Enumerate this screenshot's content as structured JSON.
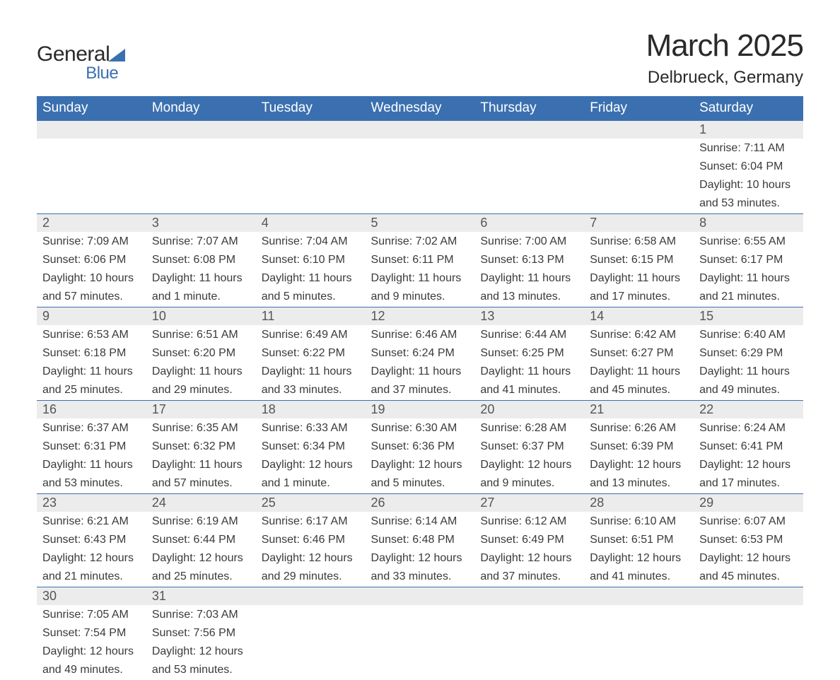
{
  "logo": {
    "word1": "General",
    "word2": "Blue"
  },
  "header": {
    "title": "March 2025",
    "subtitle": "Delbrueck, Germany"
  },
  "style": {
    "header_bg": "#3a70b0",
    "header_fg": "#ffffff",
    "daynum_bg": "#ececec",
    "row_divider": "#3a70b0",
    "body_bg": "#ffffff",
    "text_color": "#3a3a3a",
    "title_fontsize": 44,
    "subtitle_fontsize": 24,
    "header_fontsize": 19,
    "daynum_fontsize": 18,
    "body_fontsize": 16
  },
  "columns": [
    "Sunday",
    "Monday",
    "Tuesday",
    "Wednesday",
    "Thursday",
    "Friday",
    "Saturday"
  ],
  "weeks": [
    [
      null,
      null,
      null,
      null,
      null,
      null,
      {
        "n": "1",
        "sr": "Sunrise: 7:11 AM",
        "ss": "Sunset: 6:04 PM",
        "d1": "Daylight: 10 hours",
        "d2": "and 53 minutes."
      }
    ],
    [
      {
        "n": "2",
        "sr": "Sunrise: 7:09 AM",
        "ss": "Sunset: 6:06 PM",
        "d1": "Daylight: 10 hours",
        "d2": "and 57 minutes."
      },
      {
        "n": "3",
        "sr": "Sunrise: 7:07 AM",
        "ss": "Sunset: 6:08 PM",
        "d1": "Daylight: 11 hours",
        "d2": "and 1 minute."
      },
      {
        "n": "4",
        "sr": "Sunrise: 7:04 AM",
        "ss": "Sunset: 6:10 PM",
        "d1": "Daylight: 11 hours",
        "d2": "and 5 minutes."
      },
      {
        "n": "5",
        "sr": "Sunrise: 7:02 AM",
        "ss": "Sunset: 6:11 PM",
        "d1": "Daylight: 11 hours",
        "d2": "and 9 minutes."
      },
      {
        "n": "6",
        "sr": "Sunrise: 7:00 AM",
        "ss": "Sunset: 6:13 PM",
        "d1": "Daylight: 11 hours",
        "d2": "and 13 minutes."
      },
      {
        "n": "7",
        "sr": "Sunrise: 6:58 AM",
        "ss": "Sunset: 6:15 PM",
        "d1": "Daylight: 11 hours",
        "d2": "and 17 minutes."
      },
      {
        "n": "8",
        "sr": "Sunrise: 6:55 AM",
        "ss": "Sunset: 6:17 PM",
        "d1": "Daylight: 11 hours",
        "d2": "and 21 minutes."
      }
    ],
    [
      {
        "n": "9",
        "sr": "Sunrise: 6:53 AM",
        "ss": "Sunset: 6:18 PM",
        "d1": "Daylight: 11 hours",
        "d2": "and 25 minutes."
      },
      {
        "n": "10",
        "sr": "Sunrise: 6:51 AM",
        "ss": "Sunset: 6:20 PM",
        "d1": "Daylight: 11 hours",
        "d2": "and 29 minutes."
      },
      {
        "n": "11",
        "sr": "Sunrise: 6:49 AM",
        "ss": "Sunset: 6:22 PM",
        "d1": "Daylight: 11 hours",
        "d2": "and 33 minutes."
      },
      {
        "n": "12",
        "sr": "Sunrise: 6:46 AM",
        "ss": "Sunset: 6:24 PM",
        "d1": "Daylight: 11 hours",
        "d2": "and 37 minutes."
      },
      {
        "n": "13",
        "sr": "Sunrise: 6:44 AM",
        "ss": "Sunset: 6:25 PM",
        "d1": "Daylight: 11 hours",
        "d2": "and 41 minutes."
      },
      {
        "n": "14",
        "sr": "Sunrise: 6:42 AM",
        "ss": "Sunset: 6:27 PM",
        "d1": "Daylight: 11 hours",
        "d2": "and 45 minutes."
      },
      {
        "n": "15",
        "sr": "Sunrise: 6:40 AM",
        "ss": "Sunset: 6:29 PM",
        "d1": "Daylight: 11 hours",
        "d2": "and 49 minutes."
      }
    ],
    [
      {
        "n": "16",
        "sr": "Sunrise: 6:37 AM",
        "ss": "Sunset: 6:31 PM",
        "d1": "Daylight: 11 hours",
        "d2": "and 53 minutes."
      },
      {
        "n": "17",
        "sr": "Sunrise: 6:35 AM",
        "ss": "Sunset: 6:32 PM",
        "d1": "Daylight: 11 hours",
        "d2": "and 57 minutes."
      },
      {
        "n": "18",
        "sr": "Sunrise: 6:33 AM",
        "ss": "Sunset: 6:34 PM",
        "d1": "Daylight: 12 hours",
        "d2": "and 1 minute."
      },
      {
        "n": "19",
        "sr": "Sunrise: 6:30 AM",
        "ss": "Sunset: 6:36 PM",
        "d1": "Daylight: 12 hours",
        "d2": "and 5 minutes."
      },
      {
        "n": "20",
        "sr": "Sunrise: 6:28 AM",
        "ss": "Sunset: 6:37 PM",
        "d1": "Daylight: 12 hours",
        "d2": "and 9 minutes."
      },
      {
        "n": "21",
        "sr": "Sunrise: 6:26 AM",
        "ss": "Sunset: 6:39 PM",
        "d1": "Daylight: 12 hours",
        "d2": "and 13 minutes."
      },
      {
        "n": "22",
        "sr": "Sunrise: 6:24 AM",
        "ss": "Sunset: 6:41 PM",
        "d1": "Daylight: 12 hours",
        "d2": "and 17 minutes."
      }
    ],
    [
      {
        "n": "23",
        "sr": "Sunrise: 6:21 AM",
        "ss": "Sunset: 6:43 PM",
        "d1": "Daylight: 12 hours",
        "d2": "and 21 minutes."
      },
      {
        "n": "24",
        "sr": "Sunrise: 6:19 AM",
        "ss": "Sunset: 6:44 PM",
        "d1": "Daylight: 12 hours",
        "d2": "and 25 minutes."
      },
      {
        "n": "25",
        "sr": "Sunrise: 6:17 AM",
        "ss": "Sunset: 6:46 PM",
        "d1": "Daylight: 12 hours",
        "d2": "and 29 minutes."
      },
      {
        "n": "26",
        "sr": "Sunrise: 6:14 AM",
        "ss": "Sunset: 6:48 PM",
        "d1": "Daylight: 12 hours",
        "d2": "and 33 minutes."
      },
      {
        "n": "27",
        "sr": "Sunrise: 6:12 AM",
        "ss": "Sunset: 6:49 PM",
        "d1": "Daylight: 12 hours",
        "d2": "and 37 minutes."
      },
      {
        "n": "28",
        "sr": "Sunrise: 6:10 AM",
        "ss": "Sunset: 6:51 PM",
        "d1": "Daylight: 12 hours",
        "d2": "and 41 minutes."
      },
      {
        "n": "29",
        "sr": "Sunrise: 6:07 AM",
        "ss": "Sunset: 6:53 PM",
        "d1": "Daylight: 12 hours",
        "d2": "and 45 minutes."
      }
    ],
    [
      {
        "n": "30",
        "sr": "Sunrise: 7:05 AM",
        "ss": "Sunset: 7:54 PM",
        "d1": "Daylight: 12 hours",
        "d2": "and 49 minutes."
      },
      {
        "n": "31",
        "sr": "Sunrise: 7:03 AM",
        "ss": "Sunset: 7:56 PM",
        "d1": "Daylight: 12 hours",
        "d2": "and 53 minutes."
      },
      null,
      null,
      null,
      null,
      null
    ]
  ]
}
